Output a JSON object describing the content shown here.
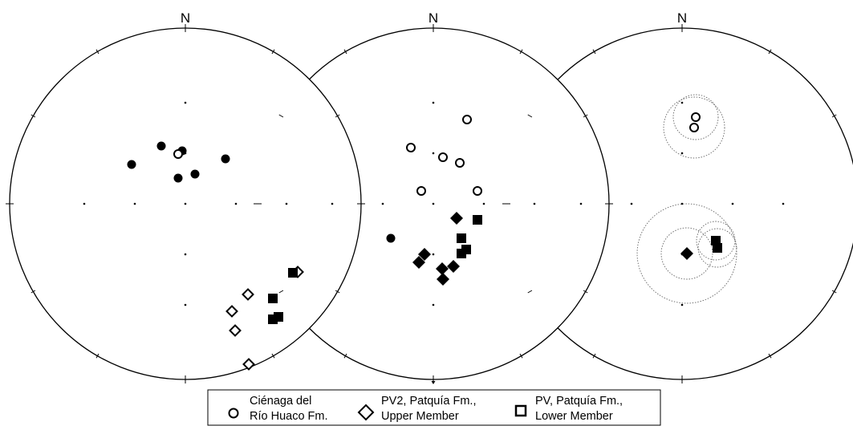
{
  "north_label": "N",
  "legend": {
    "items": [
      {
        "symbol": "open-circle",
        "line1": "Ciénaga del",
        "line2": "Río Huaco Fm."
      },
      {
        "symbol": "open-diamond",
        "line1": "PV2, Patquía Fm.,",
        "line2": "Upper Member"
      },
      {
        "symbol": "filled-square",
        "line1": "PV, Patquía Fm.,",
        "line2": "Lower Member"
      }
    ]
  },
  "chart_data": [
    {
      "type": "scatter",
      "projection": "equal-area stereonet",
      "series": [
        {
          "symbol": "filled-circle",
          "points": [
            [
              -30,
              -72
            ],
            [
              -4,
              -66
            ],
            [
              50,
              -56
            ],
            [
              -67,
              -49
            ],
            [
              -9,
              -32
            ],
            [
              12,
              -37
            ]
          ]
        },
        {
          "symbol": "open-circle",
          "points": [
            [
              -9,
              -62
            ]
          ]
        },
        {
          "symbol": "open-diamond",
          "points": [
            [
              140,
              85
            ],
            [
              78,
              113
            ],
            [
              58,
              134
            ],
            [
              62,
              158
            ],
            [
              79,
              200
            ]
          ]
        },
        {
          "symbol": "filled-square",
          "points": [
            [
              134,
              86
            ],
            [
              109,
              118
            ],
            [
              116,
              141
            ],
            [
              109,
              144
            ]
          ]
        }
      ]
    },
    {
      "type": "scatter",
      "projection": "equal-area stereonet",
      "series": [
        {
          "symbol": "open-circle",
          "points": [
            [
              42,
              -105
            ],
            [
              -28,
              -70
            ],
            [
              12,
              -58
            ],
            [
              33,
              -51
            ],
            [
              -15,
              -16
            ],
            [
              55,
              -16
            ]
          ]
        },
        {
          "symbol": "filled-circle",
          "points": [
            [
              -53,
              43
            ]
          ]
        },
        {
          "symbol": "filled-diamond",
          "points": [
            [
              29,
              18
            ],
            [
              -11,
              63
            ],
            [
              -18,
              73
            ],
            [
              11,
              81
            ],
            [
              25,
              78
            ],
            [
              12,
              94
            ]
          ]
        },
        {
          "symbol": "filled-square",
          "points": [
            [
              55,
              20
            ],
            [
              35,
              43
            ],
            [
              41,
              57
            ],
            [
              35,
              62
            ]
          ]
        }
      ]
    },
    {
      "type": "scatter",
      "projection": "equal-area stereonet",
      "series": [
        {
          "symbol": "open-circle",
          "points": [
            [
              17,
              -108
            ],
            [
              15,
              -95
            ]
          ]
        },
        {
          "symbol": "filled-diamond",
          "points": [
            [
              6,
              62
            ]
          ]
        },
        {
          "symbol": "filled-square",
          "points": [
            [
              42,
              46
            ],
            [
              44,
              55
            ]
          ]
        }
      ],
      "confidence_circles": [
        {
          "center": [
            17,
            -108
          ],
          "radius": 28
        },
        {
          "center": [
            15,
            -95
          ],
          "radius": 38
        },
        {
          "center": [
            6,
            62
          ],
          "radius": 62
        },
        {
          "center": [
            6,
            62
          ],
          "radius": 32
        },
        {
          "center": [
            42,
            46
          ],
          "radius": 24
        },
        {
          "center": [
            44,
            55
          ],
          "radius": 24
        }
      ]
    }
  ]
}
